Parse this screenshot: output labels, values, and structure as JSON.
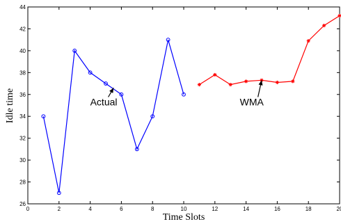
{
  "chart_data": {
    "type": "line",
    "xlabel": "Time Slots",
    "ylabel": "Idle time",
    "xlim": [
      0,
      20
    ],
    "ylim": [
      26,
      44
    ],
    "xticks": [
      0,
      2,
      4,
      6,
      8,
      10,
      12,
      14,
      16,
      18,
      20
    ],
    "yticks": [
      26,
      28,
      30,
      32,
      34,
      36,
      38,
      40,
      42,
      44
    ],
    "grid": false,
    "legend": "none",
    "series": [
      {
        "name": "Actual",
        "color": "#0000ff",
        "marker": "circle",
        "x": [
          1,
          2,
          3,
          4,
          5,
          6,
          7,
          8,
          9,
          10
        ],
        "y": [
          34,
          27,
          40,
          38,
          37,
          36,
          31,
          34,
          41,
          36
        ]
      },
      {
        "name": "WMA",
        "color": "#ff0000",
        "marker": "star",
        "x": [
          11,
          12,
          13,
          14,
          15,
          16,
          17,
          18,
          19,
          20
        ],
        "y": [
          36.9,
          37.8,
          36.9,
          37.2,
          37.3,
          37.1,
          37.2,
          40.9,
          42.3,
          43.2
        ]
      }
    ],
    "annotations": [
      {
        "text": "Actual",
        "target_x": 5.5,
        "target_y": 36.6,
        "text_x": 4.0,
        "text_y": 35.0
      },
      {
        "text": "WMA",
        "target_x": 15.0,
        "target_y": 37.3,
        "text_x": 13.6,
        "text_y": 35.0
      }
    ]
  }
}
